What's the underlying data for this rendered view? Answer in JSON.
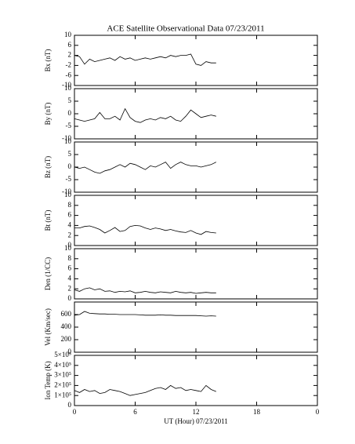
{
  "chart_data": [
    {
      "type": "line",
      "title": "ACE Satellite Observational Data   07/23/2011",
      "ylabel": "Bx (nT)",
      "x": [
        0,
        0.5,
        1,
        1.5,
        2,
        2.5,
        3,
        3.5,
        4,
        4.5,
        5,
        5.5,
        6,
        6.5,
        7,
        7.5,
        8,
        8.5,
        9,
        9.5,
        10,
        10.5,
        11,
        11.5,
        12,
        12.5,
        13,
        13.5,
        14
      ],
      "series": [
        {
          "color": "#000000",
          "values": [
            2,
            1.5,
            -1.5,
            0.5,
            -0.5,
            0,
            0.5,
            1,
            0,
            1.5,
            0.5,
            1,
            0,
            0.5,
            1,
            0.5,
            1,
            1.5,
            1,
            2,
            1.5,
            2,
            2,
            2.5,
            -1.5,
            -2,
            -0.5,
            -1,
            -1
          ]
        }
      ],
      "xlim": [
        0,
        24
      ],
      "ylim": [
        -10,
        10
      ],
      "yticks": [
        -10,
        -6,
        -2,
        2,
        6,
        10
      ]
    },
    {
      "type": "line",
      "ylabel": "By (nT)",
      "x": [
        0,
        0.5,
        1,
        1.5,
        2,
        2.5,
        3,
        3.5,
        4,
        4.5,
        5,
        5.5,
        6,
        6.5,
        7,
        7.5,
        8,
        8.5,
        9,
        9.5,
        10,
        10.5,
        11,
        11.5,
        12,
        12.5,
        13,
        13.5,
        14
      ],
      "series": [
        {
          "color": "#000000",
          "values": [
            -2,
            -2.5,
            -3,
            -2.5,
            -2,
            0.5,
            -2,
            -2,
            -1,
            -2.5,
            2,
            -1.5,
            -3,
            -3.5,
            -2.5,
            -2,
            -2.5,
            -1.5,
            -2,
            -1,
            -2.5,
            -3,
            -1,
            1.5,
            0,
            -1.5,
            -1,
            -0.5,
            -1
          ]
        }
      ],
      "xlim": [
        0,
        24
      ],
      "ylim": [
        -10,
        10
      ],
      "yticks": [
        -10,
        -5,
        0,
        5,
        10
      ]
    },
    {
      "type": "line",
      "ylabel": "Bz (nT)",
      "x": [
        0,
        0.5,
        1,
        1.5,
        2,
        2.5,
        3,
        3.5,
        4,
        4.5,
        5,
        5.5,
        6,
        6.5,
        7,
        7.5,
        8,
        8.5,
        9,
        9.5,
        10,
        10.5,
        11,
        11.5,
        12,
        12.5,
        13,
        13.5,
        14
      ],
      "series": [
        {
          "color": "#000000",
          "values": [
            0,
            -0.5,
            0,
            -1,
            -2,
            -2.5,
            -1.5,
            -1,
            0,
            1,
            0,
            1.5,
            1,
            0,
            -1,
            0.5,
            0,
            1,
            2,
            -0.5,
            1,
            2,
            1,
            0.5,
            0.5,
            0,
            0.5,
            1,
            2
          ]
        }
      ],
      "xlim": [
        0,
        24
      ],
      "ylim": [
        -10,
        10
      ],
      "yticks": [
        -10,
        -5,
        0,
        5,
        10
      ]
    },
    {
      "type": "line",
      "ylabel": "Bt (nT)",
      "x": [
        0,
        0.5,
        1,
        1.5,
        2,
        2.5,
        3,
        3.5,
        4,
        4.5,
        5,
        5.5,
        6,
        6.5,
        7,
        7.5,
        8,
        8.5,
        9,
        9.5,
        10,
        10.5,
        11,
        11.5,
        12,
        12.5,
        13,
        13.5,
        14
      ],
      "series": [
        {
          "color": "#000000",
          "values": [
            3.5,
            3.5,
            3.8,
            3.9,
            3.6,
            3.2,
            2.5,
            3,
            3.6,
            2.8,
            3,
            3.8,
            4,
            3.9,
            3.5,
            3.2,
            3.5,
            3.3,
            3,
            3.2,
            2.9,
            2.7,
            2.6,
            3,
            2.5,
            2.2,
            2.8,
            2.6,
            2.5
          ]
        }
      ],
      "xlim": [
        0,
        24
      ],
      "ylim": [
        0,
        10
      ],
      "yticks": [
        0,
        2,
        4,
        6,
        8,
        10
      ]
    },
    {
      "type": "line",
      "ylabel": "Den (1/CC)",
      "x": [
        0,
        0.5,
        1,
        1.5,
        2,
        2.5,
        3,
        3.5,
        4,
        4.5,
        5,
        5.5,
        6,
        6.5,
        7,
        7.5,
        8,
        8.5,
        9,
        9.5,
        10,
        10.5,
        11,
        11.5,
        12,
        12.5,
        13,
        13.5,
        14
      ],
      "series": [
        {
          "color": "#000000",
          "values": [
            1.8,
            1.5,
            2,
            2.2,
            1.8,
            2,
            1.5,
            1.6,
            1.3,
            1.5,
            1.4,
            1.6,
            1.2,
            1.3,
            1.5,
            1.3,
            1.2,
            1.4,
            1.3,
            1.2,
            1.5,
            1.3,
            1.2,
            1.3,
            1.1,
            1.2,
            1.3,
            1.2,
            1.2
          ]
        }
      ],
      "xlim": [
        0,
        24
      ],
      "ylim": [
        0,
        10
      ],
      "yticks": [
        0,
        2,
        4,
        6,
        8,
        10
      ]
    },
    {
      "type": "line",
      "ylabel": "Vel (Km/sec)",
      "x": [
        0,
        0.5,
        1,
        1.5,
        2,
        2.5,
        3,
        3.5,
        4,
        4.5,
        5,
        5.5,
        6,
        6.5,
        7,
        7.5,
        8,
        8.5,
        9,
        9.5,
        10,
        10.5,
        11,
        11.5,
        12,
        12.5,
        13,
        13.5,
        14
      ],
      "series": [
        {
          "color": "#000000",
          "values": [
            590,
            600,
            650,
            620,
            615,
            610,
            610,
            605,
            605,
            600,
            600,
            600,
            600,
            595,
            590,
            590,
            590,
            595,
            590,
            590,
            585,
            585,
            585,
            585,
            585,
            580,
            575,
            580,
            575
          ]
        }
      ],
      "xlim": [
        0,
        24
      ],
      "ylim": [
        0,
        800
      ],
      "yticks": [
        0,
        200,
        400,
        600
      ]
    },
    {
      "type": "line",
      "ylabel": "Ion Temp (K)",
      "xlabel": "UT (Hour)   07/23/2011",
      "x": [
        0,
        0.5,
        1,
        1.5,
        2,
        2.5,
        3,
        3.5,
        4,
        4.5,
        5,
        5.5,
        6,
        6.5,
        7,
        7.5,
        8,
        8.5,
        9,
        9.5,
        10,
        10.5,
        11,
        11.5,
        12,
        12.5,
        13,
        13.5,
        14
      ],
      "series": [
        {
          "color": "#000000",
          "values": [
            150000,
            130000,
            160000,
            140000,
            150000,
            120000,
            130000,
            160000,
            150000,
            140000,
            120000,
            100000,
            110000,
            120000,
            130000,
            150000,
            170000,
            180000,
            160000,
            200000,
            170000,
            180000,
            150000,
            160000,
            150000,
            140000,
            200000,
            160000,
            140000
          ]
        }
      ],
      "xlim": [
        0,
        24
      ],
      "ylim": [
        0,
        500000
      ],
      "yticks": [
        0,
        {
          "value": 100000,
          "label": "1×10⁵"
        },
        {
          "value": 200000,
          "label": "2×10⁵"
        },
        {
          "value": 300000,
          "label": "3×10⁵"
        },
        {
          "value": 400000,
          "label": "4×10⁵"
        },
        {
          "value": 500000,
          "label": "5×10⁵"
        }
      ],
      "xticks": [
        0,
        6,
        12,
        18,
        {
          "value": 24,
          "label": "0"
        }
      ]
    }
  ]
}
